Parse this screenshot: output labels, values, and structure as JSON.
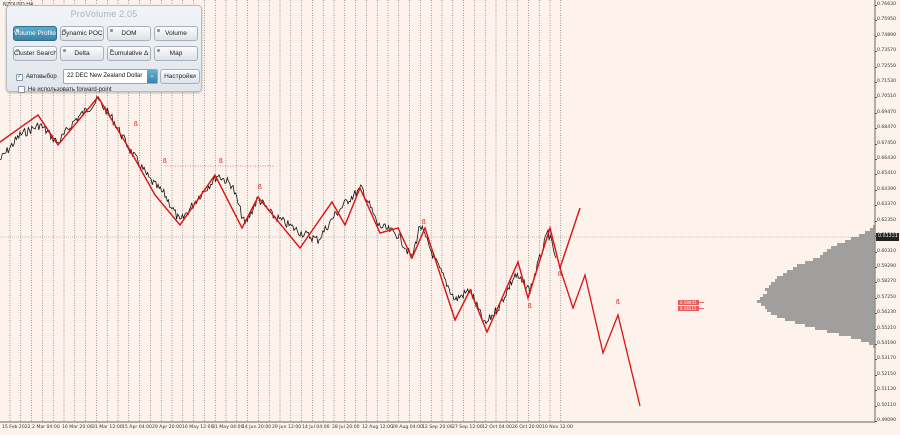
{
  "symbol": {
    "caption": "NZDUSD,H4"
  },
  "panel": {
    "title": "ProVolume 2.05",
    "buttons": [
      {
        "label": "Volume Profile",
        "active": true
      },
      {
        "label": "Dynamic POC",
        "active": false
      },
      {
        "label": "DOM",
        "active": false
      },
      {
        "label": "Volume",
        "active": false
      },
      {
        "label": "Cluster Search",
        "active": false
      },
      {
        "label": "Delta",
        "active": false
      },
      {
        "label": "Cumulative Δ",
        "active": false
      },
      {
        "label": "Map",
        "active": false
      }
    ],
    "auto_label": "Автовыбор",
    "auto_checked": true,
    "instrument_value": "22 DEC New Zealand Dollar",
    "settings_label": "Настройки",
    "forward_label": "Не использовать forward-point",
    "forward_checked": false
  },
  "price_axis": {
    "ticks": [
      "0.76630",
      "0.75950",
      "0.74890",
      "0.73570",
      "0.72550",
      "0.71530",
      "0.70510",
      "0.69470",
      "0.68470",
      "0.67450",
      "0.66430",
      "0.65410",
      "0.64390",
      "0.63370",
      "0.62350",
      "0.61330",
      "0.60310",
      "0.59290",
      "0.58270",
      "0.57250",
      "0.56230",
      "0.55210",
      "0.54190",
      "0.53170",
      "0.52150",
      "0.51130",
      "0.50110",
      "0.49090"
    ],
    "current_price": "0.61331",
    "current_price_color": "#222222"
  },
  "date_axis": {
    "labels": [
      "15 Feb 2022",
      "2 Mar 04:00",
      "16 Mar 20:00",
      "31 Mar 12:00",
      "15 Apr 04:00",
      "29 Apr 20:00",
      "16 May 12:00",
      "31 May 04:00",
      "14 Jun 20:00",
      "29 Jun 12:00",
      "14 Jul 04:00",
      "28 Jul 20:00",
      "12 Aug 12:00",
      "29 Aug 04:00",
      "12 Sep 20:00",
      "27 Sep 12:00",
      "12 Oct 04:00",
      "26 Oct 20:00",
      "10 Nov 12:00"
    ]
  },
  "level_labels": [
    {
      "text": "0.58045"
    },
    {
      "text": "0.56515"
    }
  ],
  "wave_marker_symbol": "ß",
  "colors": {
    "background": "#fdf3ec",
    "price_line": "#111111",
    "wave": "#e01010",
    "profile": "#8f8f8f",
    "grid": "#444444",
    "accent": "#3c83a5"
  }
}
